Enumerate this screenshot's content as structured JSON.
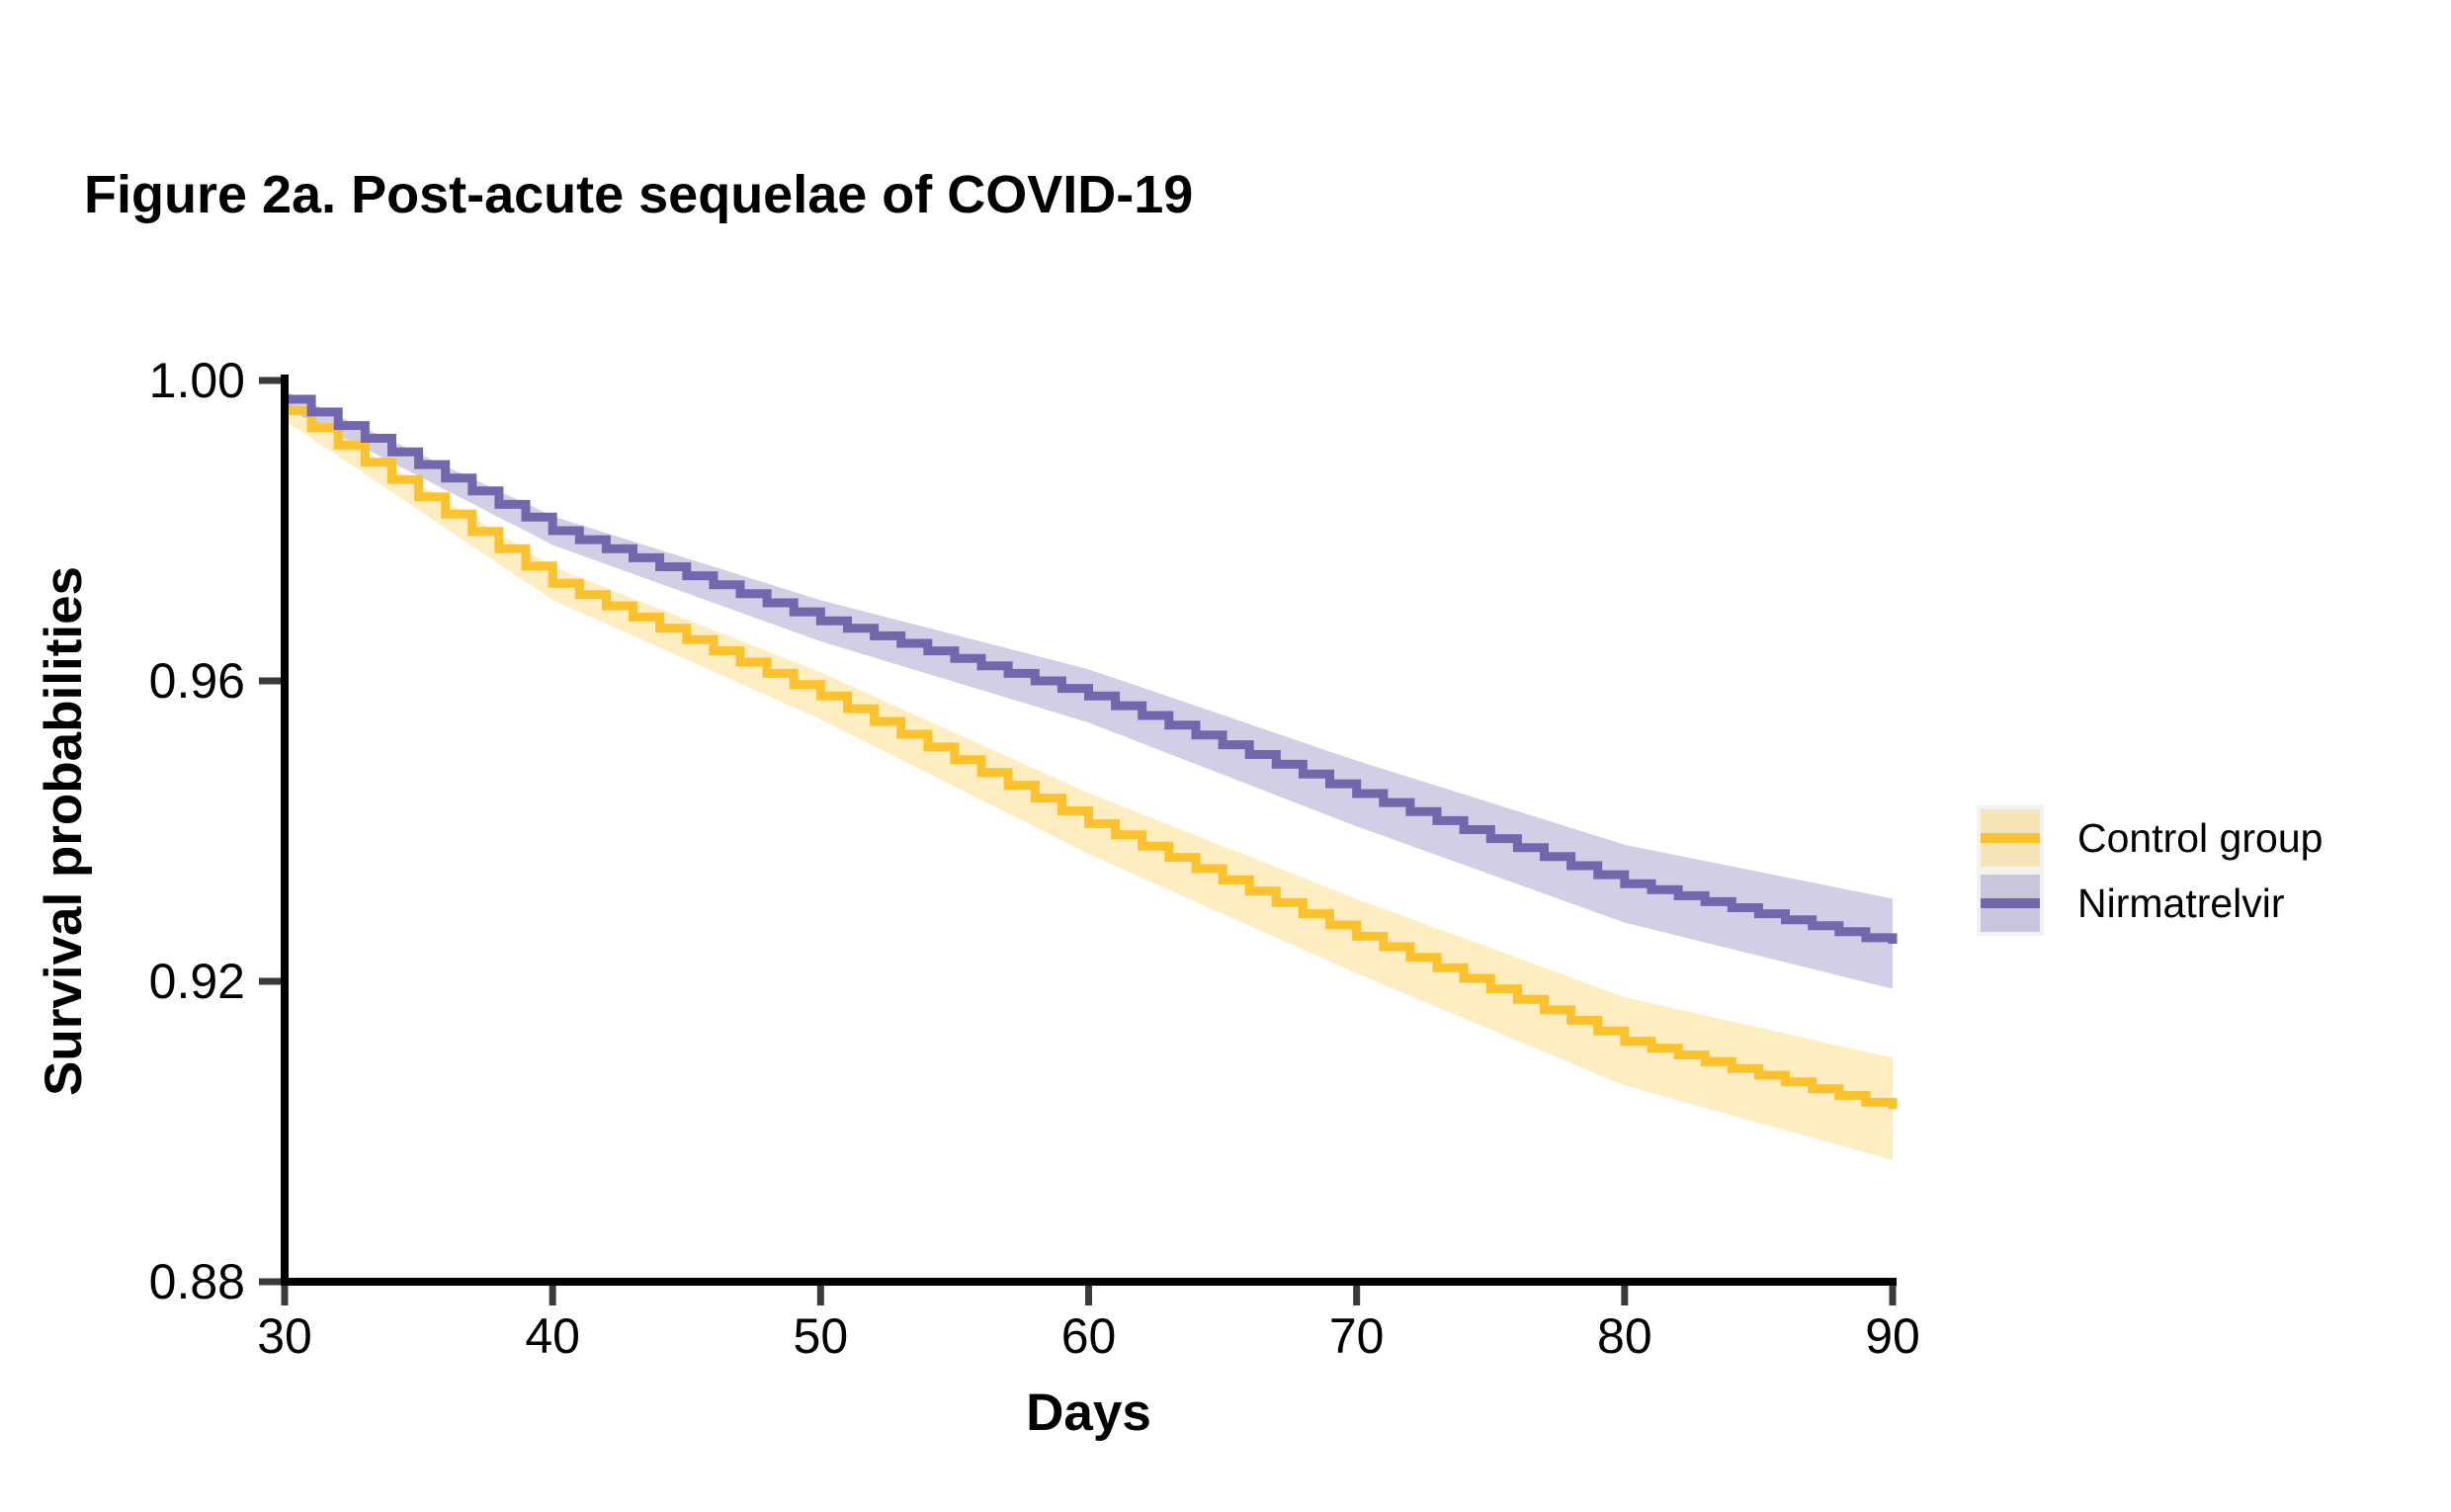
{
  "title": "Figure 2a. Post-acute sequelae of COVID-19",
  "chart_data": {
    "type": "line",
    "subtype": "kaplan-meier-step-with-confidence-bands",
    "title": "Figure 2a. Post-acute sequelae of COVID-19",
    "xlabel": "Days",
    "ylabel": "Survival probabilities",
    "xlim": [
      30,
      90
    ],
    "ylim": [
      0.88,
      1.0
    ],
    "x_ticks": [
      "30",
      "40",
      "50",
      "60",
      "70",
      "80",
      "90"
    ],
    "y_ticks": [
      "1.00",
      "0.96",
      "0.92",
      "0.88"
    ],
    "grid": false,
    "legend_position": "right",
    "axis_color": "#000000",
    "tick_color": "#3a3a3a",
    "series": [
      {
        "name": "Control group",
        "color": "#FBC22D",
        "band_opacity": 0.3,
        "ci_half_width_start": 0.0013,
        "ci_half_width_end": 0.0068,
        "days": [
          30,
          31,
          32,
          33,
          34,
          35,
          36,
          37,
          38,
          39,
          40,
          41,
          42,
          43,
          44,
          45,
          46,
          47,
          48,
          49,
          50,
          51,
          52,
          53,
          54,
          55,
          56,
          57,
          58,
          59,
          60,
          61,
          62,
          63,
          64,
          65,
          66,
          67,
          68,
          69,
          70,
          71,
          72,
          73,
          74,
          75,
          76,
          77,
          78,
          79,
          80,
          81,
          82,
          83,
          84,
          85,
          86,
          87,
          88,
          89,
          90
        ],
        "values": [
          0.996,
          0.9937,
          0.9914,
          0.9891,
          0.9868,
          0.9845,
          0.9822,
          0.9799,
          0.9776,
          0.9753,
          0.973,
          0.9715,
          0.97,
          0.9685,
          0.967,
          0.9655,
          0.964,
          0.9625,
          0.961,
          0.9595,
          0.958,
          0.9563,
          0.9546,
          0.9529,
          0.9512,
          0.9495,
          0.9478,
          0.9461,
          0.9444,
          0.9427,
          0.941,
          0.9395,
          0.938,
          0.9365,
          0.935,
          0.9335,
          0.932,
          0.9305,
          0.929,
          0.9275,
          0.926,
          0.9246,
          0.9232,
          0.9218,
          0.9204,
          0.919,
          0.9176,
          0.9162,
          0.9148,
          0.9134,
          0.912,
          0.9111,
          0.9102,
          0.9093,
          0.9084,
          0.9075,
          0.9066,
          0.9057,
          0.9048,
          0.9039,
          0.903
        ]
      },
      {
        "name": "Nirmatrelvir",
        "color": "#7267AD",
        "band_opacity": 0.32,
        "ci_half_width_start": 0.0011,
        "ci_half_width_end": 0.006,
        "days": [
          30,
          31,
          32,
          33,
          34,
          35,
          36,
          37,
          38,
          39,
          40,
          41,
          42,
          43,
          44,
          45,
          46,
          47,
          48,
          49,
          50,
          51,
          52,
          53,
          54,
          55,
          56,
          57,
          58,
          59,
          60,
          61,
          62,
          63,
          64,
          65,
          66,
          67,
          68,
          69,
          70,
          71,
          72,
          73,
          74,
          75,
          76,
          77,
          78,
          79,
          80,
          81,
          82,
          83,
          84,
          85,
          86,
          87,
          88,
          89,
          90
        ],
        "values": [
          0.9975,
          0.9958,
          0.994,
          0.9923,
          0.9905,
          0.9888,
          0.987,
          0.9853,
          0.9835,
          0.9818,
          0.98,
          0.9788,
          0.9776,
          0.9764,
          0.9752,
          0.974,
          0.9728,
          0.9716,
          0.9704,
          0.9692,
          0.968,
          0.967,
          0.966,
          0.965,
          0.964,
          0.963,
          0.962,
          0.961,
          0.96,
          0.959,
          0.958,
          0.9567,
          0.9554,
          0.9541,
          0.9528,
          0.9515,
          0.9502,
          0.9489,
          0.9476,
          0.9463,
          0.945,
          0.9438,
          0.9426,
          0.9414,
          0.9402,
          0.939,
          0.9378,
          0.9366,
          0.9354,
          0.9342,
          0.933,
          0.9322,
          0.9314,
          0.9306,
          0.9298,
          0.929,
          0.9282,
          0.9274,
          0.9266,
          0.9258,
          0.925
        ]
      }
    ]
  }
}
